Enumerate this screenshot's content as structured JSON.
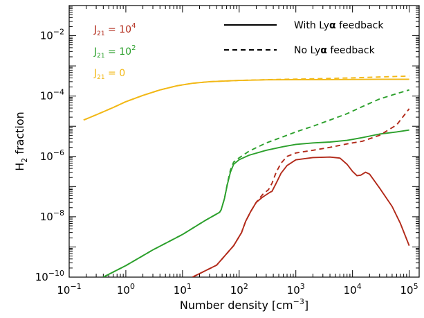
{
  "chart_data": {
    "type": "line",
    "xlabel": "Number density [cm",
    "xlabel_sup": "−3",
    "xlabel_end": "]",
    "ylabel_main": "H",
    "ylabel_sub": "2",
    "ylabel_end": " fraction",
    "x_scale": "log",
    "y_scale": "log",
    "xlim": [
      0.1,
      150000
    ],
    "ylim": [
      1e-10,
      0.1
    ],
    "grid": false,
    "x_ticks": [
      {
        "value": 0.1,
        "base": "10",
        "exp": "−1"
      },
      {
        "value": 1,
        "base": "10",
        "exp": "0"
      },
      {
        "value": 10,
        "base": "10",
        "exp": "1"
      },
      {
        "value": 100,
        "base": "10",
        "exp": "2"
      },
      {
        "value": 1000,
        "base": "10",
        "exp": "3"
      },
      {
        "value": 10000,
        "base": "10",
        "exp": "4"
      },
      {
        "value": 100000,
        "base": "10",
        "exp": "5"
      }
    ],
    "y_ticks": [
      {
        "value": 1e-10,
        "base": "10",
        "exp": "−10"
      },
      {
        "value": 1e-08,
        "base": "10",
        "exp": "−8"
      },
      {
        "value": 1e-06,
        "base": "10",
        "exp": "−6"
      },
      {
        "value": 0.0001,
        "base": "10",
        "exp": "−4"
      },
      {
        "value": 0.01,
        "base": "10",
        "exp": "−2"
      }
    ],
    "legend": {
      "placement": "top-right",
      "entries": [
        {
          "label_pre": "With Ly",
          "label_greek": "α",
          "label_post": " feedback",
          "style": "solid"
        },
        {
          "label_pre": "No Ly",
          "label_greek": "α",
          "label_post": " feedback",
          "style": "dashed"
        }
      ]
    },
    "j_labels": [
      {
        "pre": "J",
        "sub": "21",
        "eq": " = ",
        "val": "10",
        "sup": "4",
        "color": "#b22a1a"
      },
      {
        "pre": "J",
        "sub": "21",
        "eq": " = ",
        "val": "10",
        "sup": "2",
        "color": "#2ca02c"
      },
      {
        "pre": "J",
        "sub": "21",
        "eq": " = ",
        "val": "0",
        "sup": "",
        "color": "#f2b816"
      }
    ],
    "series": [
      {
        "color": "#f2b816",
        "style": "solid",
        "points": [
          [
            0.18,
            1.6e-05
          ],
          [
            0.3,
            2.4e-05
          ],
          [
            0.6,
            4.2e-05
          ],
          [
            1,
            6.5e-05
          ],
          [
            2,
            0.000105
          ],
          [
            4,
            0.00016
          ],
          [
            8,
            0.00022
          ],
          [
            15,
            0.000265
          ],
          [
            30,
            0.0003
          ],
          [
            100,
            0.00033
          ],
          [
            300,
            0.000345
          ],
          [
            1000,
            0.00035
          ],
          [
            3000,
            0.000352
          ],
          [
            10000,
            0.000355
          ],
          [
            30000,
            0.00036
          ],
          [
            100000,
            0.00036
          ]
        ]
      },
      {
        "color": "#f2b816",
        "style": "dashed",
        "points": [
          [
            0.18,
            1.6e-05
          ],
          [
            0.3,
            2.4e-05
          ],
          [
            0.6,
            4.2e-05
          ],
          [
            1,
            6.5e-05
          ],
          [
            2,
            0.000105
          ],
          [
            4,
            0.00016
          ],
          [
            8,
            0.00022
          ],
          [
            15,
            0.000265
          ],
          [
            30,
            0.0003
          ],
          [
            100,
            0.00033
          ],
          [
            300,
            0.00035
          ],
          [
            1000,
            0.000365
          ],
          [
            3000,
            0.00038
          ],
          [
            10000,
            0.0004
          ],
          [
            30000,
            0.00043
          ],
          [
            100000,
            0.00046
          ]
        ]
      },
      {
        "color": "#2ca02c",
        "style": "solid",
        "points": [
          [
            0.4,
            1e-10
          ],
          [
            1,
            2.4e-10
          ],
          [
            3,
            8e-10
          ],
          [
            10,
            2.6e-09
          ],
          [
            25,
            7.5e-09
          ],
          [
            45,
            1.4e-08
          ],
          [
            48,
            1.7e-08
          ],
          [
            55,
            4e-08
          ],
          [
            62,
            1.2e-07
          ],
          [
            70,
            3e-07
          ],
          [
            80,
            5.5e-07
          ],
          [
            100,
            7.8e-07
          ],
          [
            150,
            1.1e-06
          ],
          [
            300,
            1.6e-06
          ],
          [
            600,
            2.1e-06
          ],
          [
            1000,
            2.5e-06
          ],
          [
            2000,
            2.8e-06
          ],
          [
            4000,
            3e-06
          ],
          [
            8000,
            3.4e-06
          ],
          [
            15000,
            4.2e-06
          ],
          [
            30000,
            5.5e-06
          ],
          [
            60000,
            6.5e-06
          ],
          [
            100000,
            7.5e-06
          ]
        ]
      },
      {
        "color": "#2ca02c",
        "style": "dashed",
        "points": [
          [
            0.4,
            1e-10
          ],
          [
            1,
            2.4e-10
          ],
          [
            3,
            8e-10
          ],
          [
            10,
            2.6e-09
          ],
          [
            25,
            7.5e-09
          ],
          [
            45,
            1.4e-08
          ],
          [
            48,
            1.7e-08
          ],
          [
            55,
            4e-08
          ],
          [
            62,
            1.3e-07
          ],
          [
            70,
            3.5e-07
          ],
          [
            80,
            6.5e-07
          ],
          [
            100,
            9e-07
          ],
          [
            150,
            1.5e-06
          ],
          [
            300,
            2.8e-06
          ],
          [
            600,
            4.5e-06
          ],
          [
            1000,
            6.5e-06
          ],
          [
            2000,
            1e-05
          ],
          [
            4000,
            1.6e-05
          ],
          [
            8000,
            2.6e-05
          ],
          [
            15000,
            4.5e-05
          ],
          [
            30000,
            8e-05
          ],
          [
            60000,
            0.00012
          ],
          [
            100000,
            0.00016
          ]
        ]
      },
      {
        "color": "#b22a1a",
        "style": "solid",
        "points": [
          [
            15,
            1e-10
          ],
          [
            40,
            2.5e-10
          ],
          [
            80,
            1.1e-09
          ],
          [
            110,
            3e-09
          ],
          [
            130,
            7e-09
          ],
          [
            160,
            1.5e-08
          ],
          [
            200,
            3e-08
          ],
          [
            260,
            4.5e-08
          ],
          [
            350,
            6.5e-08
          ],
          [
            380,
            7e-08
          ],
          [
            450,
            1.3e-07
          ],
          [
            550,
            2.8e-07
          ],
          [
            700,
            5e-07
          ],
          [
            1000,
            7.7e-07
          ],
          [
            2000,
            9.2e-07
          ],
          [
            4000,
            9.5e-07
          ],
          [
            6000,
            8.8e-07
          ],
          [
            8000,
            5.5e-07
          ],
          [
            10000,
            3.2e-07
          ],
          [
            12000,
            2.3e-07
          ],
          [
            14000,
            2.4e-07
          ],
          [
            17000,
            3e-07
          ],
          [
            20000,
            2.6e-07
          ],
          [
            30000,
            9e-08
          ],
          [
            50000,
            2.2e-08
          ],
          [
            70000,
            6e-09
          ],
          [
            100000,
            1.1e-09
          ]
        ]
      },
      {
        "color": "#b22a1a",
        "style": "dashed",
        "points": [
          [
            15,
            1e-10
          ],
          [
            40,
            2.5e-10
          ],
          [
            80,
            1.1e-09
          ],
          [
            110,
            3e-09
          ],
          [
            130,
            7e-09
          ],
          [
            160,
            1.5e-08
          ],
          [
            200,
            3e-08
          ],
          [
            260,
            5.5e-08
          ],
          [
            330,
            8e-08
          ],
          [
            380,
            1.3e-07
          ],
          [
            450,
            3e-07
          ],
          [
            550,
            6e-07
          ],
          [
            700,
            1e-06
          ],
          [
            1000,
            1.3e-06
          ],
          [
            2000,
            1.6e-06
          ],
          [
            4000,
            2e-06
          ],
          [
            8000,
            2.6e-06
          ],
          [
            15000,
            3.2e-06
          ],
          [
            30000,
            5e-06
          ],
          [
            60000,
            1.1e-05
          ],
          [
            100000,
            3.8e-05
          ]
        ]
      }
    ]
  }
}
